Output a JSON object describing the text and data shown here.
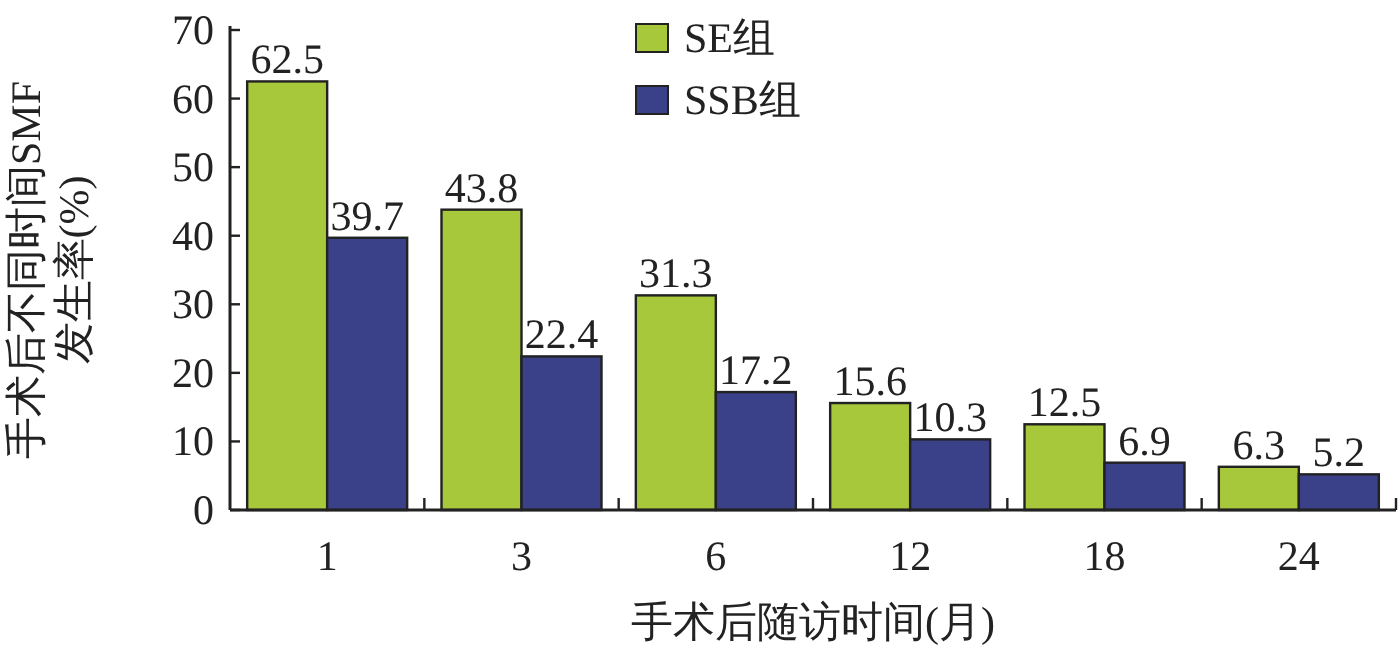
{
  "chart_data": {
    "type": "bar",
    "xlabel": "手术后随访时间(月)",
    "ylabel": "手术后不同时间SMF\n发生率(%)",
    "categories": [
      "1",
      "3",
      "6",
      "12",
      "18",
      "24"
    ],
    "series": [
      {
        "name": "SE组",
        "color": "#a8c83c",
        "values": [
          62.5,
          43.8,
          31.3,
          15.6,
          12.5,
          6.3
        ]
      },
      {
        "name": "SSB组",
        "color": "#3b4189",
        "values": [
          39.7,
          22.4,
          17.2,
          10.3,
          6.9,
          5.2
        ]
      }
    ],
    "ylim": [
      0,
      70
    ],
    "yticks": [
      0,
      10,
      20,
      30,
      40,
      50,
      60,
      70
    ],
    "data_labels": true,
    "legend": "top"
  }
}
